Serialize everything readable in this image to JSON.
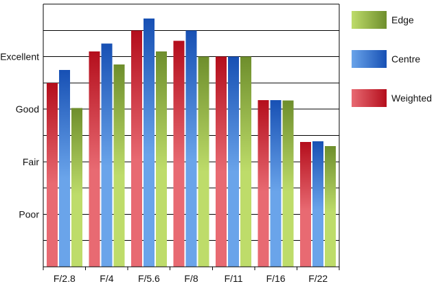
{
  "chart_data": {
    "type": "bar",
    "title": "",
    "xlabel": "",
    "ylabel": "",
    "categories": [
      "F/2.8",
      "F/4",
      "F/5.6",
      "F/8",
      "F/11",
      "F/16",
      "F/22"
    ],
    "y_tick_labels": [
      {
        "label": "Poor",
        "value": 2
      },
      {
        "label": "Fair",
        "value": 4
      },
      {
        "label": "Good",
        "value": 6
      },
      {
        "label": "Excellent",
        "value": 8
      }
    ],
    "ylim": [
      0,
      10
    ],
    "grid": true,
    "legend_position": "right",
    "series": [
      {
        "name": "Weighted",
        "values": [
          7.0,
          8.2,
          9.0,
          8.6,
          8.0,
          6.35,
          4.75
        ],
        "colors": [
          "#e86a72",
          "#b40e1c"
        ]
      },
      {
        "name": "Centre",
        "values": [
          7.5,
          8.5,
          9.45,
          9.0,
          8.0,
          6.35,
          4.78
        ],
        "colors": [
          "#6aa4ea",
          "#1750b4"
        ]
      },
      {
        "name": "Edge",
        "values": [
          6.05,
          7.7,
          8.2,
          8.0,
          8.0,
          6.33,
          4.6
        ],
        "colors": [
          "#bedc6a",
          "#6e8e2c"
        ]
      }
    ],
    "legend_order": [
      "Edge",
      "Centre",
      "Weighted"
    ]
  }
}
